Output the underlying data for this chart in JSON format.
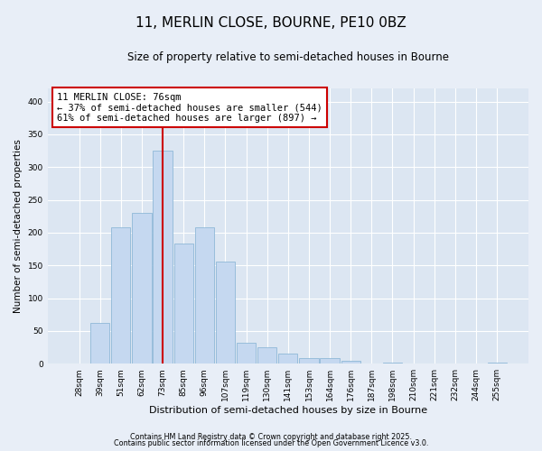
{
  "title": "11, MERLIN CLOSE, BOURNE, PE10 0BZ",
  "subtitle": "Size of property relative to semi-detached houses in Bourne",
  "xlabel": "Distribution of semi-detached houses by size in Bourne",
  "ylabel": "Number of semi-detached properties",
  "bins": [
    "28sqm",
    "39sqm",
    "51sqm",
    "62sqm",
    "73sqm",
    "85sqm",
    "96sqm",
    "107sqm",
    "119sqm",
    "130sqm",
    "141sqm",
    "153sqm",
    "164sqm",
    "176sqm",
    "187sqm",
    "198sqm",
    "210sqm",
    "221sqm",
    "232sqm",
    "244sqm",
    "255sqm"
  ],
  "values": [
    0,
    62,
    208,
    230,
    325,
    183,
    208,
    156,
    32,
    25,
    15,
    8,
    8,
    4,
    0,
    1,
    0,
    0,
    0,
    0,
    1
  ],
  "bar_color": "#c5d8f0",
  "bar_edge_color": "#8fb8d8",
  "vline_x_index": 4,
  "vline_color": "#cc0000",
  "annotation_title": "11 MERLIN CLOSE: 76sqm",
  "annotation_line1": "← 37% of semi-detached houses are smaller (544)",
  "annotation_line2": "61% of semi-detached houses are larger (897) →",
  "annotation_box_color": "white",
  "annotation_box_edge": "#cc0000",
  "ylim": [
    0,
    420
  ],
  "yticks": [
    0,
    50,
    100,
    150,
    200,
    250,
    300,
    350,
    400
  ],
  "footnote1": "Contains HM Land Registry data © Crown copyright and database right 2025.",
  "footnote2": "Contains public sector information licensed under the Open Government Licence v3.0.",
  "bg_color": "#e8eef7",
  "plot_bg_color": "#dce6f2",
  "grid_color": "#ffffff",
  "title_fontsize": 11,
  "subtitle_fontsize": 8.5
}
